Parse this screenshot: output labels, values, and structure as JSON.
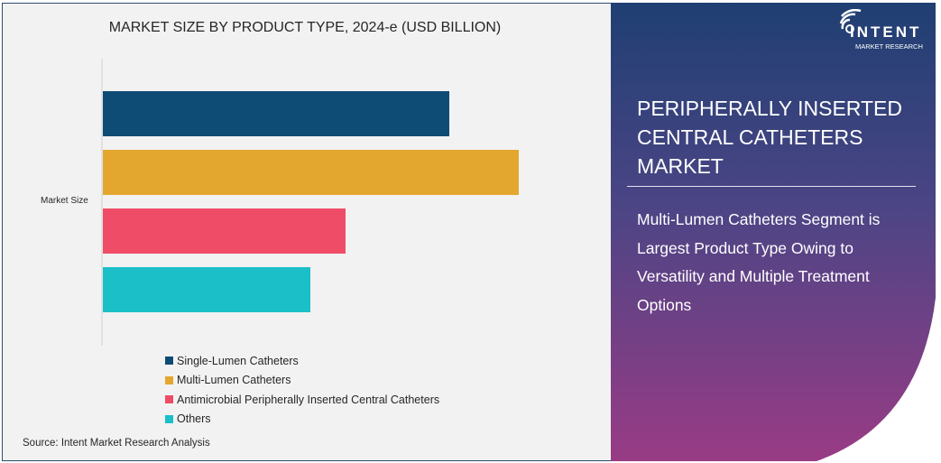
{
  "chart_data": {
    "type": "bar",
    "orientation": "horizontal",
    "title": "MARKET SIZE BY PRODUCT TYPE, 2024-e (USD BILLION)",
    "categories": [
      "Market Size"
    ],
    "series": [
      {
        "name": "Single-Lumen Catheters",
        "values": [
          3.84
        ],
        "color": "#0f4c75"
      },
      {
        "name": "Multi-Lumen Catheters",
        "values": [
          4.61
        ],
        "color": "#e3a72f"
      },
      {
        "name": "Antimicrobial Peripherally Inserted Central Catheters",
        "values": [
          2.69
        ],
        "color": "#ef4d67"
      },
      {
        "name": "Others",
        "values": [
          2.3
        ],
        "color": "#1bbfc8"
      }
    ],
    "xlim": [
      0,
      5.6
    ],
    "grid": false,
    "legend": "bottom"
  },
  "source": "Source:  Intent Market Research Analysis",
  "panel": {
    "title": "PERIPHERALLY INSERTED CENTRAL CATHETERS MARKET",
    "description": "Multi-Lumen Catheters Segment is Largest Product Type Owing to Versatility and Multiple Treatment Options"
  },
  "logo": {
    "name": "INTENT",
    "tagline": "MARKET RESEARCH"
  }
}
